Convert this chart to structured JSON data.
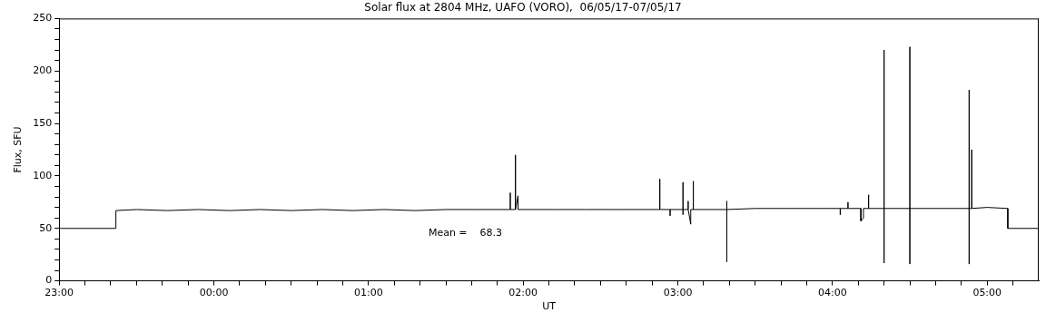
{
  "chart_data": {
    "type": "line",
    "title": "Solar flux at 2804 MHz, UAFO (VORO),  06/05/17-07/05/17",
    "xlabel": "UT",
    "ylabel": "Flux, SFU",
    "annotations": [
      "Mean =    68.3"
    ],
    "xlim": [
      "--05-06T23:00",
      "--05-07T05:20"
    ],
    "ylim": [
      0,
      250
    ],
    "xticks": [
      {
        "value": "--05-06T23:00",
        "label": "23:00"
      },
      {
        "value": "--05-06T23:10",
        "label": null
      },
      {
        "value": "--05-06T23:20",
        "label": null
      },
      {
        "value": "--05-06T23:30",
        "label": null
      },
      {
        "value": "--05-06T23:40",
        "label": null
      },
      {
        "value": "--05-06T23:50",
        "label": null
      },
      {
        "value": "--05-07T00:00",
        "label": "00:00"
      },
      {
        "value": "--05-07T00:10",
        "label": null
      },
      {
        "value": "--05-07T00:20",
        "label": null
      },
      {
        "value": "--05-07T00:30",
        "label": null
      },
      {
        "value": "--05-07T00:40",
        "label": null
      },
      {
        "value": "--05-07T00:50",
        "label": null
      },
      {
        "value": "--05-07T01:00",
        "label": "01:00"
      },
      {
        "value": "--05-07T01:10",
        "label": null
      },
      {
        "value": "--05-07T01:20",
        "label": null
      },
      {
        "value": "--05-07T01:30",
        "label": null
      },
      {
        "value": "--05-07T01:40",
        "label": null
      },
      {
        "value": "--05-07T01:50",
        "label": null
      },
      {
        "value": "--05-07T02:00",
        "label": "02:00"
      },
      {
        "value": "--05-07T02:10",
        "label": null
      },
      {
        "value": "--05-07T02:20",
        "label": null
      },
      {
        "value": "--05-07T02:30",
        "label": null
      },
      {
        "value": "--05-07T02:40",
        "label": null
      },
      {
        "value": "--05-07T02:50",
        "label": null
      },
      {
        "value": "--05-07T03:00",
        "label": "03:00"
      },
      {
        "value": "--05-07T03:10",
        "label": null
      },
      {
        "value": "--05-07T03:20",
        "label": null
      },
      {
        "value": "--05-07T03:30",
        "label": null
      },
      {
        "value": "--05-07T03:40",
        "label": null
      },
      {
        "value": "--05-07T03:50",
        "label": null
      },
      {
        "value": "--05-07T04:00",
        "label": "04:00"
      },
      {
        "value": "--05-07T04:10",
        "label": null
      },
      {
        "value": "--05-07T04:20",
        "label": null
      },
      {
        "value": "--05-07T04:30",
        "label": null
      },
      {
        "value": "--05-07T04:40",
        "label": null
      },
      {
        "value": "--05-07T04:50",
        "label": null
      },
      {
        "value": "--05-07T05:00",
        "label": "05:00"
      },
      {
        "value": "--05-07T05:10",
        "label": null
      }
    ],
    "yticks": [
      0,
      {
        "value": 10,
        "label": null
      },
      {
        "value": 20,
        "label": null
      },
      {
        "value": 30,
        "label": null
      },
      {
        "value": 40,
        "label": null
      },
      50,
      {
        "value": 60,
        "label": null
      },
      {
        "value": 70,
        "label": null
      },
      {
        "value": 80,
        "label": null
      },
      {
        "value": 90,
        "label": null
      },
      100,
      {
        "value": 110,
        "label": null
      },
      {
        "value": 120,
        "label": null
      },
      {
        "value": 130,
        "label": null
      },
      {
        "value": 140,
        "label": null
      },
      150,
      {
        "value": 160,
        "label": null
      },
      {
        "value": 170,
        "label": null
      },
      {
        "value": 180,
        "label": null
      },
      {
        "value": 190,
        "label": null
      },
      200,
      {
        "value": 210,
        "label": null
      },
      {
        "value": 220,
        "label": null
      },
      {
        "value": 230,
        "label": null
      },
      {
        "value": 240,
        "label": null
      },
      250
    ],
    "marker": "none",
    "line_style": "solid",
    "series": [
      {
        "color": "#000000",
        "x": [
          "--05-06T23:00",
          "--05-06T23:22",
          "--05-06T23:22",
          "--05-06T23:30",
          "--05-06T23:42",
          "--05-06T23:54",
          "--05-07T00:06",
          "--05-07T00:18",
          "--05-07T00:30",
          "--05-07T00:42",
          "--05-07T00:54",
          "--05-07T01:06",
          "--05-07T01:18",
          "--05-07T01:30",
          "--05-07T01:42",
          "--05-07T01:55",
          "--05-07T01:55",
          "--05-07T01:55",
          "--05-07T01:57",
          "--05-07T01:57",
          "--05-07T01:57",
          "--05-07T01:58",
          "--05-07T01:58",
          "--05-07T02:12",
          "--05-07T02:24",
          "--05-07T02:36",
          "--05-07T02:53",
          "--05-07T02:53",
          "--05-07T02:53",
          "--05-07T02:57",
          "--05-07T02:57",
          "--05-07T02:57",
          "--05-07T03:02",
          "--05-07T03:02",
          "--05-07T03:02",
          "--05-07T03:02",
          "--05-07T03:04",
          "--05-07T03:04",
          "--05-07T03:04",
          "--05-07T03:05",
          "--05-07T03:05",
          "--05-07T03:06",
          "--05-07T03:06",
          "--05-07T03:06",
          "--05-07T03:19",
          "--05-07T03:19",
          "--05-07T03:19",
          "--05-07T03:19",
          "--05-07T03:30",
          "--05-07T03:42",
          "--05-07T03:54",
          "--05-07T04:03",
          "--05-07T04:03",
          "--05-07T04:03",
          "--05-07T04:06",
          "--05-07T04:06",
          "--05-07T04:06",
          "--05-07T04:11",
          "--05-07T04:11",
          "--05-07T04:12",
          "--05-07T04:12",
          "--05-07T04:14",
          "--05-07T04:14",
          "--05-07T04:14",
          "--05-07T04:20",
          "--05-07T04:20",
          "--05-07T04:20",
          "--05-07T04:20",
          "--05-07T04:30",
          "--05-07T04:30",
          "--05-07T04:30",
          "--05-07T04:30",
          "--05-07T04:42",
          "--05-07T04:53",
          "--05-07T04:53",
          "--05-07T04:53",
          "--05-07T04:53",
          "--05-07T04:54",
          "--05-07T04:54",
          "--05-07T04:54",
          "--05-07T05:00",
          "--05-07T05:08",
          "--05-07T05:08",
          "--05-07T05:20"
        ],
        "values": [
          50,
          50,
          67,
          68,
          67,
          68,
          67,
          68,
          67,
          68,
          67,
          68,
          67,
          68,
          68,
          68,
          84,
          68,
          68,
          120,
          68,
          81,
          68,
          68,
          68,
          68,
          68,
          97,
          68,
          68,
          62,
          68,
          68,
          94,
          63,
          68,
          68,
          76,
          68,
          54,
          68,
          68,
          95,
          68,
          68,
          76,
          18,
          68,
          69,
          69,
          69,
          69,
          63,
          69,
          69,
          75,
          69,
          69,
          57,
          60,
          69,
          69,
          82,
          69,
          69,
          220,
          17,
          69,
          69,
          223,
          16,
          69,
          69,
          69,
          182,
          16,
          69,
          69,
          125,
          69,
          70,
          69,
          50,
          50
        ]
      }
    ]
  }
}
